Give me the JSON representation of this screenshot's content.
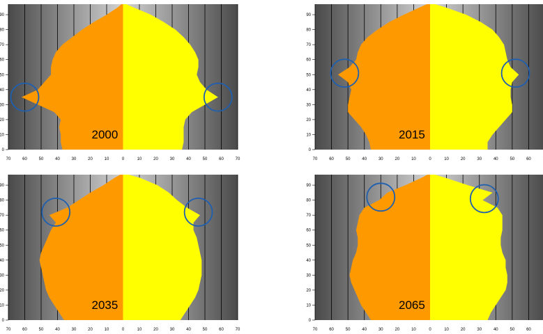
{
  "colors": {
    "male": "#FF9900",
    "female": "#FFFF00",
    "marker": "#1F5FAF",
    "grid": "#000000",
    "bg_edge": "#4a4a4a",
    "bg_center": "#d2d2d2"
  },
  "chart_data": [
    {
      "type": "area",
      "subtype": "population-pyramid",
      "label": "2000",
      "xlim": [
        -70,
        70
      ],
      "ylim": [
        0,
        97
      ],
      "x_ticks": [
        "70",
        "60",
        "50",
        "40",
        "30",
        "20",
        "10",
        "0",
        "10",
        "20",
        "30",
        "40",
        "50",
        "60",
        "70"
      ],
      "show_x_ticks": true,
      "y_ticks": [
        "0",
        "10",
        "20",
        "30",
        "40",
        "50",
        "60",
        "70",
        "80",
        "90"
      ],
      "ages": [
        0,
        5,
        10,
        15,
        20,
        25,
        30,
        35,
        40,
        45,
        50,
        55,
        60,
        65,
        70,
        75,
        80,
        85,
        90,
        95,
        98
      ],
      "male": [
        37,
        38,
        38,
        39,
        38,
        42,
        52,
        62,
        52,
        48,
        44,
        44,
        43,
        41,
        37,
        31,
        25,
        18,
        10,
        3,
        0
      ],
      "female": [
        36,
        37,
        37,
        37,
        38,
        42,
        50,
        58,
        51,
        47,
        45,
        46,
        46,
        44,
        41,
        37,
        32,
        25,
        17,
        6,
        0
      ],
      "markers": [
        {
          "side": "male",
          "x": -60,
          "y": 35
        },
        {
          "side": "female",
          "x": 58,
          "y": 35
        }
      ]
    },
    {
      "type": "area",
      "subtype": "population-pyramid",
      "label": "2015",
      "xlim": [
        -70,
        70
      ],
      "ylim": [
        0,
        97
      ],
      "x_ticks": [
        "70",
        "60",
        "50",
        "40",
        "30",
        "20",
        "10",
        "0",
        "10",
        "20",
        "30",
        "40",
        "50",
        "60",
        "70"
      ],
      "show_x_ticks": true,
      "y_ticks": [
        "0",
        "10",
        "20",
        "30",
        "40",
        "50",
        "60",
        "70",
        "80",
        "90"
      ],
      "ages": [
        0,
        5,
        10,
        15,
        20,
        25,
        30,
        35,
        40,
        45,
        50,
        55,
        60,
        65,
        70,
        75,
        80,
        85,
        90,
        95,
        98
      ],
      "male": [
        36,
        37,
        39,
        42,
        46,
        50,
        50,
        49,
        48,
        50,
        56,
        49,
        45,
        44,
        42,
        38,
        32,
        25,
        16,
        6,
        0
      ],
      "female": [
        35,
        35,
        38,
        42,
        46,
        50,
        50,
        49,
        49,
        50,
        54,
        49,
        47,
        46,
        45,
        42,
        38,
        31,
        22,
        9,
        0
      ],
      "markers": [
        {
          "side": "male",
          "x": -52,
          "y": 51
        },
        {
          "side": "female",
          "x": 52,
          "y": 51
        }
      ]
    },
    {
      "type": "area",
      "subtype": "population-pyramid",
      "label": "2035",
      "xlim": [
        -70,
        70
      ],
      "ylim": [
        0,
        97
      ],
      "x_ticks": [
        "70",
        "60",
        "50",
        "40",
        "30",
        "20",
        "10",
        "0",
        "10",
        "20",
        "30",
        "40",
        "50",
        "60",
        "70"
      ],
      "show_x_ticks": true,
      "y_ticks": [
        "0",
        "10",
        "20",
        "30",
        "40",
        "50",
        "60",
        "70",
        "80",
        "90"
      ],
      "ages": [
        0,
        5,
        10,
        15,
        20,
        25,
        30,
        35,
        40,
        45,
        50,
        55,
        60,
        65,
        70,
        75,
        80,
        85,
        90,
        95,
        98
      ],
      "male": [
        36,
        39,
        42,
        45,
        47,
        48,
        49,
        50,
        51,
        50,
        48,
        46,
        44,
        41,
        45,
        34,
        27,
        20,
        12,
        5,
        0
      ],
      "female": [
        35,
        38,
        41,
        44,
        46,
        47,
        48,
        48,
        48,
        47,
        46,
        45,
        43,
        43,
        47,
        39,
        33,
        28,
        21,
        10,
        0
      ],
      "markers": [
        {
          "side": "male",
          "x": -41,
          "y": 72
        },
        {
          "side": "female",
          "x": 46,
          "y": 72
        }
      ]
    },
    {
      "type": "area",
      "subtype": "population-pyramid",
      "label": "2065",
      "xlim": [
        -70,
        70
      ],
      "ylim": [
        0,
        97
      ],
      "x_ticks": [
        "70",
        "60",
        "50",
        "40",
        "30",
        "20",
        "10",
        "0",
        "10",
        "20",
        "30",
        "40",
        "50",
        "60",
        "70"
      ],
      "show_x_ticks": true,
      "y_ticks": [
        "0",
        "10",
        "20",
        "30",
        "40",
        "50",
        "60",
        "70",
        "80",
        "90"
      ],
      "ages": [
        0,
        5,
        10,
        15,
        20,
        25,
        30,
        35,
        40,
        45,
        50,
        55,
        60,
        65,
        70,
        75,
        80,
        85,
        90,
        95,
        98
      ],
      "male": [
        36,
        39,
        42,
        44,
        46,
        48,
        49,
        48,
        47,
        45,
        44,
        44,
        45,
        44,
        43,
        40,
        31,
        26,
        15,
        5,
        0
      ],
      "female": [
        35,
        37,
        40,
        43,
        46,
        47,
        47,
        46,
        46,
        44,
        43,
        43,
        44,
        44,
        44,
        41,
        32,
        38,
        23,
        9,
        0
      ],
      "markers": [
        {
          "side": "male",
          "x": -30,
          "y": 82
        },
        {
          "side": "female",
          "x": 33,
          "y": 81
        }
      ]
    }
  ]
}
